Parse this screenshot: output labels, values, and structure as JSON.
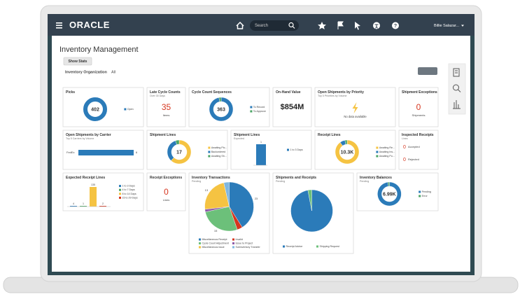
{
  "header": {
    "brand": "ORACLE",
    "search": "Search",
    "user": "Billie Salazar..."
  },
  "page": {
    "title": "Inventory Management",
    "show_stats": "Show Stats",
    "org_label": "Inventory Organization",
    "org_value": "All"
  },
  "tiles": [
    {
      "kind": "donut",
      "title": "Picks",
      "center": 402,
      "segments": [
        {
          "name": "Open",
          "color": "#2b7bb9",
          "share": 100
        }
      ]
    },
    {
      "kind": "metric",
      "title": "Late Cycle Counts",
      "subtitle": "Over 30 Days",
      "value": 35,
      "unit": "Items",
      "color": "#d6361f"
    },
    {
      "kind": "donut",
      "title": "Cycle Count Sequences",
      "center": 363,
      "segments": [
        {
          "name": "To Record",
          "color": "#2b7bb9",
          "share": 97
        },
        {
          "name": "To Approve",
          "color": "#4aa564",
          "share": 3
        }
      ]
    },
    {
      "kind": "text",
      "title": "On-Hand Value",
      "text": "$854M"
    },
    {
      "kind": "nodata",
      "title": "Open Shipments by Priority",
      "subtitle": "Top 5 Priorities by Volume",
      "text": "No data available"
    },
    {
      "kind": "metric",
      "title": "Shipment Exceptions",
      "value": 0,
      "unit": "Shipments",
      "color": "#d6361f"
    },
    {
      "kind": "hbar",
      "title": "Open Shipments by Carrier",
      "subtitle": "Top 5 Carriers by Volume",
      "categories": [
        "FedEx"
      ],
      "values": [
        6
      ],
      "xlim": [
        0,
        6
      ],
      "color": "#2b7bb9"
    },
    {
      "kind": "donut",
      "title": "Shipment Lines",
      "center": 17,
      "segments": [
        {
          "name": "Awaiting Pic...",
          "color": "#f5c342",
          "share": 62
        },
        {
          "name": "Backordered",
          "color": "#2b7bb9",
          "share": 33
        },
        {
          "name": "Awaiting Sh...",
          "color": "#4aa564",
          "share": 5
        }
      ]
    },
    {
      "kind": "vbar",
      "title": "Shipment Lines",
      "subtitle": "Expected",
      "ylim": [
        0,
        1
      ],
      "series": [
        {
          "name": "1 to 3 Days",
          "color": "#2b7bb9",
          "value": 1
        }
      ]
    },
    {
      "kind": "donut",
      "title": "Receipt Lines",
      "center": "10.3K",
      "segments": [
        {
          "name": "Awaiting Re...",
          "color": "#f5c342",
          "share": 90
        },
        {
          "name": "Awaiting Ins...",
          "color": "#2b7bb9",
          "share": 7
        },
        {
          "name": "Awaiting Pu...",
          "color": "#4aa564",
          "share": 3
        }
      ]
    },
    {
      "kind": "pair",
      "title": "Inspected Receipts",
      "subtitle": "Lines",
      "color": "#d6361f",
      "items": [
        {
          "value": 0,
          "label": "Accepted"
        },
        {
          "value": 0,
          "label": "Rejected"
        }
      ]
    },
    {
      "kind": "vbar",
      "title": "Expected Receipt Lines",
      "ylim": [
        0,
        135
      ],
      "series": [
        {
          "name": "1 to 3 Days",
          "color": "#2b7bb9",
          "value": 4
        },
        {
          "name": "4 to 7 Days",
          "color": "#4aa564",
          "value": 1
        },
        {
          "name": "8 to 14 Days",
          "color": "#f5c342",
          "value": 135
        },
        {
          "name": "15 to 29 Days",
          "color": "#d6361f",
          "value": 2
        }
      ]
    },
    {
      "kind": "metric",
      "title": "Receipt Exceptions",
      "value": 0,
      "unit": "Lines",
      "color": "#d6361f"
    },
    {
      "kind": "pie",
      "title": "Inventory Transactions",
      "subtitle": "Pending",
      "segments": [
        {
          "name": "Miscellaneous Receipt",
          "color": "#2b7bb9",
          "share": 23
        },
        {
          "name": "Invalid",
          "color": "#d6361f",
          "share": 2
        },
        {
          "name": "Cycle Count Adjustment",
          "color": "#6cc07a",
          "share": 15
        },
        {
          "name": "Issue to Project",
          "color": "#8e5ba8",
          "share": 1
        },
        {
          "name": "Miscellaneous issue",
          "color": "#f5c342",
          "share": 13
        },
        {
          "name": "Subinventory Transfer",
          "color": "#7fb7e0",
          "share": 2
        }
      ]
    },
    {
      "kind": "pie",
      "title": "Shipments and Receipts",
      "subtitle": "Pending",
      "segments": [
        {
          "name": "Receipt Advice",
          "color": "#2b7bb9",
          "share": 97
        },
        {
          "name": "Shipping Request",
          "color": "#6cc07a",
          "share": 3
        }
      ]
    },
    {
      "kind": "donut",
      "title": "Inventory Balances",
      "subtitle": "Pending",
      "center": "6.99K",
      "segments": [
        {
          "name": "Pending",
          "color": "#2b7bb9",
          "share": 98
        },
        {
          "name": "Error",
          "color": "#4aa564",
          "share": 2
        }
      ]
    }
  ]
}
